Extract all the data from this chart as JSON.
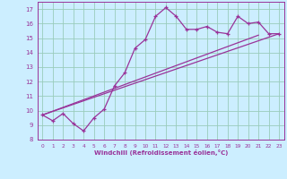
{
  "title": "",
  "xlabel": "Windchill (Refroidissement éolien,°C)",
  "bg_color": "#cceeff",
  "grid_color": "#99ccbb",
  "line_color": "#993399",
  "xlim": [
    -0.5,
    23.5
  ],
  "ylim": [
    8,
    17.5
  ],
  "xticks": [
    0,
    1,
    2,
    3,
    4,
    5,
    6,
    7,
    8,
    9,
    10,
    11,
    12,
    13,
    14,
    15,
    16,
    17,
    18,
    19,
    20,
    21,
    22,
    23
  ],
  "yticks": [
    8,
    9,
    10,
    11,
    12,
    13,
    14,
    15,
    16,
    17
  ],
  "series1_x": [
    0,
    1,
    2,
    3,
    4,
    5,
    6,
    7,
    8,
    9,
    10,
    11,
    12,
    13,
    14,
    15,
    16,
    17,
    18,
    19,
    20,
    21,
    22,
    23
  ],
  "series1_y": [
    9.7,
    9.3,
    9.8,
    9.1,
    8.6,
    9.5,
    10.1,
    11.7,
    12.6,
    14.3,
    14.9,
    16.5,
    17.1,
    16.5,
    15.6,
    15.6,
    15.8,
    15.4,
    15.3,
    16.5,
    16.0,
    16.1,
    15.3,
    15.3
  ],
  "series2_x": [
    0,
    23
  ],
  "series2_y": [
    9.7,
    15.3
  ],
  "series3_x": [
    0,
    21
  ],
  "series3_y": [
    9.7,
    15.2
  ]
}
